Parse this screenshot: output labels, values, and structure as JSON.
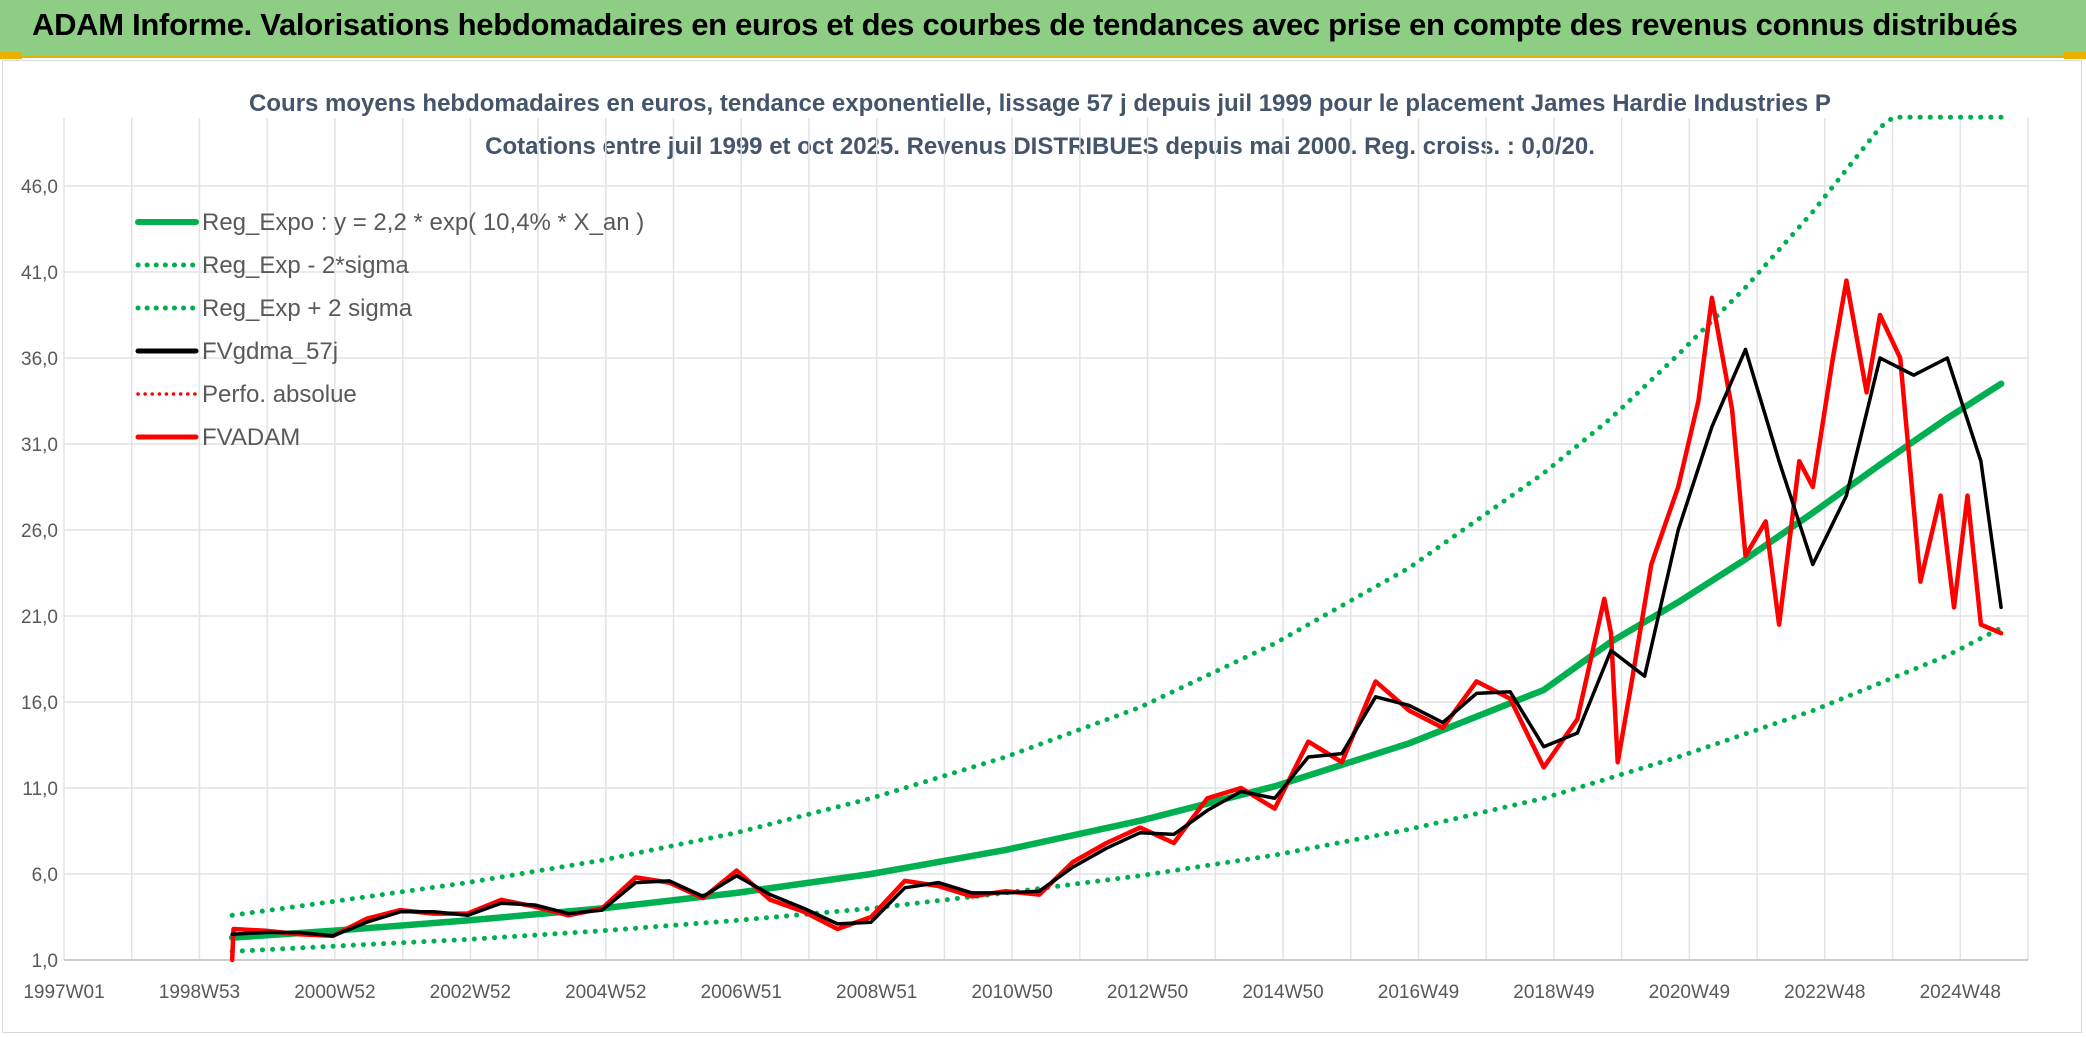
{
  "header": {
    "title": "ADAM Informe. Valorisations hebdomadaires en euros et des courbes de tendances avec prise en compte des revenus connus distribués"
  },
  "colors": {
    "banner": "#8dce84",
    "accent": "#e8b000",
    "reg_expo": "#00b050",
    "fvgdma": "#000000",
    "fvadam": "#ff0000",
    "grid": "#e3e3e3"
  },
  "chart_data": {
    "type": "line",
    "title": "Cours moyens hebdomadaires en euros, tendance exponentielle, lissage 57 j depuis juil 1999 pour le placement James Hardie Industries P",
    "subtitle": "Cotations entre juil 1999 et oct 2025. Revenus DISTRIBUES depuis mai 2000. Reg. croiss. : 0,0/20.",
    "xlabel": "",
    "ylabel": "",
    "x_ticks": [
      "1997W01",
      "1998W53",
      "2000W52",
      "2002W52",
      "2004W52",
      "2006W51",
      "2008W51",
      "2010W50",
      "2012W50",
      "2014W50",
      "2016W49",
      "2018W49",
      "2020W49",
      "2022W48",
      "2024W48"
    ],
    "x_range": [
      1997.0,
      2026.2
    ],
    "y_ticks": [
      "1,0",
      "6,0",
      "11,0",
      "16,0",
      "21,0",
      "26,0",
      "31,0",
      "36,0",
      "41,0",
      "46,0"
    ],
    "ylim": [
      1,
      50
    ],
    "grid": true,
    "legend_position": "top-left",
    "legend": [
      "Reg_Expo : y = 2,2 * exp( 10,4% *  X_an )",
      "Reg_Exp - 2*sigma",
      "Reg_Exp + 2 sigma",
      "FVgdma_57j",
      "Perfo. absolue",
      "FVADAM"
    ],
    "series": [
      {
        "name": "Reg_Expo : y = 2,2 * exp( 10,4% *  X_an )",
        "style": "solid-thick",
        "color": "#00b050",
        "x": [
          1999.5,
          2001,
          2003,
          2005,
          2007,
          2009,
          2011,
          2013,
          2015,
          2017,
          2019,
          2020,
          2021,
          2022,
          2023,
          2024,
          2025,
          2025.8
        ],
        "y": [
          2.3,
          2.7,
          3.3,
          4.0,
          4.9,
          6.0,
          7.4,
          9.1,
          11.1,
          13.6,
          16.7,
          19.5,
          21.8,
          24.3,
          27.0,
          29.8,
          32.5,
          34.5
        ]
      },
      {
        "name": "Reg_Exp - 2*sigma",
        "style": "dotted",
        "color": "#00b050",
        "x": [
          1999.5,
          2001,
          2003,
          2005,
          2007,
          2009,
          2011,
          2013,
          2015,
          2017,
          2019,
          2021,
          2023,
          2025,
          2025.8
        ],
        "y": [
          1.5,
          1.8,
          2.2,
          2.7,
          3.3,
          4.0,
          4.9,
          5.9,
          7.1,
          8.6,
          10.4,
          12.8,
          15.5,
          18.7,
          20.3
        ]
      },
      {
        "name": "Reg_Exp + 2 sigma",
        "style": "dotted",
        "color": "#00b050",
        "x": [
          1999.5,
          2001,
          2003,
          2005,
          2007,
          2009,
          2011,
          2013,
          2015,
          2017,
          2019,
          2020,
          2021,
          2022,
          2023,
          2024,
          2024.2,
          2025.8
        ],
        "y": [
          3.6,
          4.4,
          5.5,
          6.8,
          8.4,
          10.4,
          12.8,
          15.7,
          19.4,
          23.8,
          29.3,
          32.5,
          36.2,
          40.1,
          44.5,
          49.4,
          50.0,
          50.0
        ]
      },
      {
        "name": "FVgdma_57j",
        "style": "solid",
        "color": "#000000",
        "x": [
          1999.5,
          2000,
          2000.5,
          2001,
          2001.5,
          2002,
          2002.5,
          2003,
          2003.5,
          2004,
          2004.5,
          2005,
          2005.5,
          2006,
          2006.5,
          2007,
          2007.5,
          2008,
          2008.5,
          2009,
          2009.5,
          2010,
          2010.5,
          2011,
          2011.5,
          2012,
          2012.5,
          2013,
          2013.5,
          2014,
          2014.5,
          2015,
          2015.5,
          2016,
          2016.5,
          2017,
          2017.5,
          2018,
          2018.5,
          2019,
          2019.5,
          2020,
          2020.5,
          2021,
          2021.5,
          2022,
          2022.5,
          2023,
          2023.5,
          2024,
          2024.5,
          2025,
          2025.5,
          2025.8
        ],
        "y": [
          2.5,
          2.6,
          2.6,
          2.4,
          3.2,
          3.8,
          3.8,
          3.6,
          4.3,
          4.2,
          3.7,
          3.9,
          5.5,
          5.6,
          4.7,
          5.9,
          4.8,
          4.0,
          3.1,
          3.2,
          5.2,
          5.5,
          4.9,
          4.9,
          5.0,
          6.4,
          7.5,
          8.4,
          8.3,
          9.7,
          10.8,
          10.4,
          12.8,
          13.0,
          16.3,
          15.8,
          14.8,
          16.5,
          16.6,
          13.4,
          14.2,
          19.0,
          17.5,
          26.0,
          32.0,
          36.5,
          30.0,
          24.0,
          28.0,
          36.0,
          35.0,
          36.0,
          30.0,
          21.5
        ]
      },
      {
        "name": "FVADAM",
        "style": "solid-thick",
        "color": "#ff0000",
        "x": [
          1999.5,
          1999.52,
          2000,
          2000.5,
          2001,
          2001.5,
          2002,
          2002.5,
          2003,
          2003.5,
          2004,
          2004.5,
          2005,
          2005.5,
          2006,
          2006.5,
          2007,
          2007.5,
          2008,
          2008.5,
          2009,
          2009.5,
          2010,
          2010.5,
          2011,
          2011.5,
          2012,
          2012.5,
          2013,
          2013.5,
          2014,
          2014.5,
          2015,
          2015.5,
          2016,
          2016.5,
          2017,
          2017.5,
          2018,
          2018.5,
          2019,
          2019.5,
          2019.9,
          2020.0,
          2020.1,
          2020.3,
          2020.6,
          2021,
          2021.3,
          2021.5,
          2021.8,
          2022,
          2022.3,
          2022.5,
          2022.8,
          2023,
          2023.3,
          2023.5,
          2023.8,
          2024,
          2024.3,
          2024.6,
          2024.9,
          2025.1,
          2025.3,
          2025.5,
          2025.8
        ],
        "y": [
          1.0,
          2.8,
          2.7,
          2.5,
          2.4,
          3.4,
          3.9,
          3.7,
          3.7,
          4.5,
          4.1,
          3.6,
          4.0,
          5.8,
          5.5,
          4.6,
          6.2,
          4.5,
          3.8,
          2.8,
          3.5,
          5.6,
          5.3,
          4.7,
          5.0,
          4.8,
          6.7,
          7.8,
          8.7,
          7.8,
          10.4,
          11.0,
          9.8,
          13.7,
          12.5,
          17.2,
          15.5,
          14.5,
          17.2,
          16.2,
          12.2,
          15.0,
          22.0,
          20.0,
          12.5,
          17.0,
          24.0,
          28.5,
          33.5,
          39.5,
          33.0,
          24.5,
          26.5,
          20.5,
          30.0,
          28.5,
          36.0,
          40.5,
          34.0,
          38.5,
          36.0,
          23.0,
          28.0,
          21.5,
          28.0,
          20.5,
          20.0
        ]
      }
    ]
  }
}
